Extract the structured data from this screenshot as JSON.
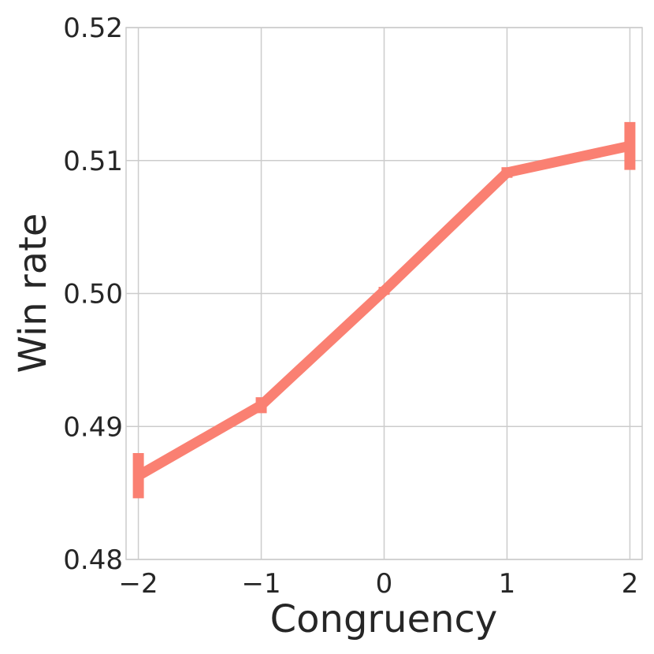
{
  "chart_data": {
    "type": "line",
    "title": "",
    "xlabel": "Congruency",
    "ylabel": "Win rate",
    "xlim": [
      -2.1,
      2.1
    ],
    "ylim": [
      0.48,
      0.52
    ],
    "xticks": [
      -2,
      -1,
      0,
      1,
      2
    ],
    "xtick_labels": [
      "−2",
      "−1",
      "0",
      "1",
      "2"
    ],
    "yticks": [
      0.48,
      0.49,
      0.5,
      0.51,
      0.52
    ],
    "ytick_labels": [
      "0.48",
      "0.49",
      "0.50",
      "0.51",
      "0.52"
    ],
    "grid": true,
    "legend": "none",
    "series": [
      {
        "color": "#fa8072",
        "x": [
          -2,
          -1,
          0,
          1,
          2
        ],
        "y": [
          0.4863,
          0.4916,
          0.5002,
          0.5091,
          0.5111
        ],
        "ci_low": [
          0.4846,
          0.491,
          0.4999,
          0.5087,
          0.5093
        ],
        "ci_high": [
          0.488,
          0.4922,
          0.5005,
          0.5095,
          0.5129
        ]
      }
    ]
  }
}
